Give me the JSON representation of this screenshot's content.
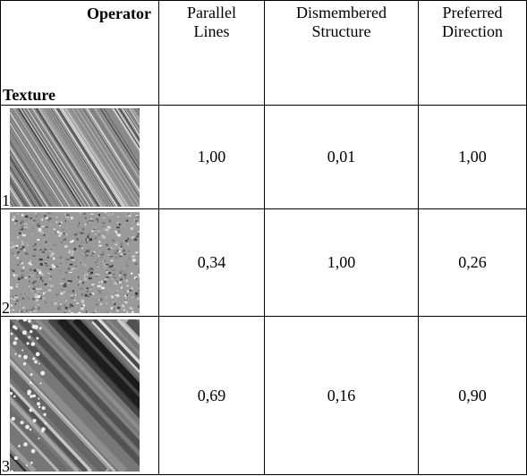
{
  "table": {
    "corner": {
      "top": "Operator",
      "bottom": "Texture"
    },
    "columns": [
      "Parallel Lines",
      "Dismembered Structure",
      "Preferred Direction"
    ],
    "rows": [
      {
        "label": "1",
        "values": [
          "1,00",
          "0,01",
          "1,00"
        ]
      },
      {
        "label": "2",
        "values": [
          "0,34",
          "1,00",
          "0,26"
        ]
      },
      {
        "label": "3",
        "values": [
          "0,69",
          "0,16",
          "0,90"
        ]
      }
    ]
  }
}
